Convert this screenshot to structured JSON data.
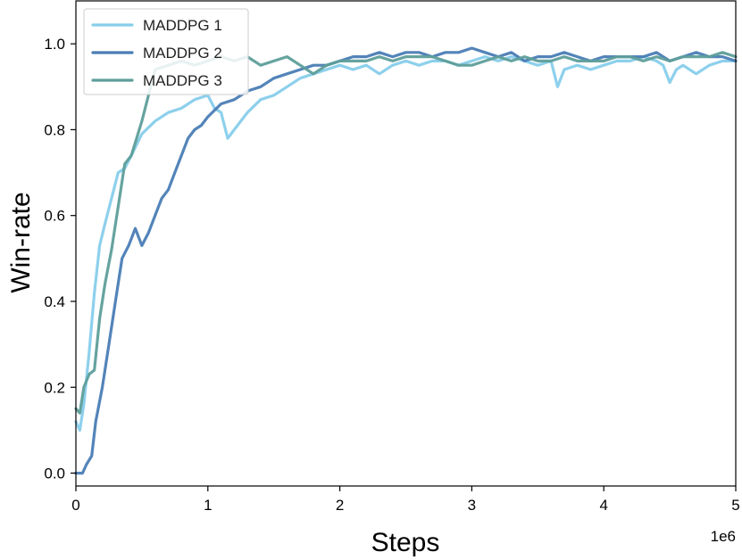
{
  "chart_data": {
    "type": "line",
    "title": "",
    "xlabel": "Steps",
    "ylabel": "Win-rate",
    "x_multiplier_label": "1e6",
    "xlim": [
      0,
      5
    ],
    "ylim": [
      -0.03,
      1.1
    ],
    "x_ticks": [
      0,
      1,
      2,
      3,
      4,
      5
    ],
    "y_ticks": [
      0.0,
      0.2,
      0.4,
      0.6,
      0.8,
      1.0
    ],
    "x_tick_labels": [
      "0",
      "1",
      "2",
      "3",
      "4",
      "5"
    ],
    "y_tick_labels": [
      "0.0",
      "0.2",
      "0.4",
      "0.6",
      "0.8",
      "1.0"
    ],
    "grid": false,
    "legend_position": "top-left",
    "series": [
      {
        "name": "MADDPG 1",
        "color": "#87CEEB",
        "points": [
          [
            0,
            0.12
          ],
          [
            0.03,
            0.1
          ],
          [
            0.06,
            0.16
          ],
          [
            0.1,
            0.28
          ],
          [
            0.14,
            0.42
          ],
          [
            0.18,
            0.53
          ],
          [
            0.22,
            0.58
          ],
          [
            0.27,
            0.64
          ],
          [
            0.32,
            0.7
          ],
          [
            0.37,
            0.71
          ],
          [
            0.42,
            0.74
          ],
          [
            0.5,
            0.79
          ],
          [
            0.6,
            0.82
          ],
          [
            0.7,
            0.84
          ],
          [
            0.8,
            0.85
          ],
          [
            0.9,
            0.87
          ],
          [
            1.0,
            0.88
          ],
          [
            1.05,
            0.85
          ],
          [
            1.1,
            0.84
          ],
          [
            1.15,
            0.78
          ],
          [
            1.2,
            0.8
          ],
          [
            1.3,
            0.84
          ],
          [
            1.4,
            0.87
          ],
          [
            1.5,
            0.88
          ],
          [
            1.6,
            0.9
          ],
          [
            1.7,
            0.92
          ],
          [
            1.8,
            0.93
          ],
          [
            1.9,
            0.94
          ],
          [
            2.0,
            0.95
          ],
          [
            2.1,
            0.94
          ],
          [
            2.2,
            0.95
          ],
          [
            2.3,
            0.93
          ],
          [
            2.4,
            0.95
          ],
          [
            2.5,
            0.96
          ],
          [
            2.6,
            0.95
          ],
          [
            2.7,
            0.96
          ],
          [
            2.8,
            0.96
          ],
          [
            2.9,
            0.95
          ],
          [
            3.0,
            0.96
          ],
          [
            3.1,
            0.97
          ],
          [
            3.2,
            0.96
          ],
          [
            3.3,
            0.97
          ],
          [
            3.4,
            0.96
          ],
          [
            3.5,
            0.95
          ],
          [
            3.6,
            0.96
          ],
          [
            3.65,
            0.9
          ],
          [
            3.7,
            0.94
          ],
          [
            3.8,
            0.95
          ],
          [
            3.9,
            0.94
          ],
          [
            4.0,
            0.95
          ],
          [
            4.1,
            0.96
          ],
          [
            4.2,
            0.96
          ],
          [
            4.3,
            0.97
          ],
          [
            4.4,
            0.96
          ],
          [
            4.45,
            0.95
          ],
          [
            4.5,
            0.91
          ],
          [
            4.55,
            0.94
          ],
          [
            4.6,
            0.95
          ],
          [
            4.7,
            0.93
          ],
          [
            4.8,
            0.95
          ],
          [
            4.9,
            0.96
          ],
          [
            5.0,
            0.96
          ]
        ]
      },
      {
        "name": "MADDPG 2",
        "color": "#4A7DB5",
        "points": [
          [
            0,
            0.0
          ],
          [
            0.05,
            0.0
          ],
          [
            0.08,
            0.02
          ],
          [
            0.12,
            0.04
          ],
          [
            0.15,
            0.12
          ],
          [
            0.2,
            0.2
          ],
          [
            0.25,
            0.3
          ],
          [
            0.3,
            0.4
          ],
          [
            0.35,
            0.5
          ],
          [
            0.4,
            0.53
          ],
          [
            0.45,
            0.57
          ],
          [
            0.5,
            0.53
          ],
          [
            0.55,
            0.56
          ],
          [
            0.6,
            0.6
          ],
          [
            0.65,
            0.64
          ],
          [
            0.7,
            0.66
          ],
          [
            0.75,
            0.7
          ],
          [
            0.8,
            0.74
          ],
          [
            0.85,
            0.78
          ],
          [
            0.9,
            0.8
          ],
          [
            0.95,
            0.81
          ],
          [
            1.0,
            0.83
          ],
          [
            1.1,
            0.86
          ],
          [
            1.2,
            0.87
          ],
          [
            1.3,
            0.89
          ],
          [
            1.4,
            0.9
          ],
          [
            1.5,
            0.92
          ],
          [
            1.6,
            0.93
          ],
          [
            1.7,
            0.94
          ],
          [
            1.8,
            0.95
          ],
          [
            1.9,
            0.95
          ],
          [
            2.0,
            0.96
          ],
          [
            2.1,
            0.97
          ],
          [
            2.2,
            0.97
          ],
          [
            2.3,
            0.98
          ],
          [
            2.4,
            0.97
          ],
          [
            2.5,
            0.98
          ],
          [
            2.6,
            0.98
          ],
          [
            2.7,
            0.97
          ],
          [
            2.8,
            0.98
          ],
          [
            2.9,
            0.98
          ],
          [
            3.0,
            0.99
          ],
          [
            3.1,
            0.98
          ],
          [
            3.2,
            0.97
          ],
          [
            3.3,
            0.98
          ],
          [
            3.4,
            0.96
          ],
          [
            3.5,
            0.97
          ],
          [
            3.6,
            0.97
          ],
          [
            3.7,
            0.98
          ],
          [
            3.8,
            0.97
          ],
          [
            3.9,
            0.96
          ],
          [
            4.0,
            0.97
          ],
          [
            4.1,
            0.97
          ],
          [
            4.2,
            0.97
          ],
          [
            4.3,
            0.97
          ],
          [
            4.4,
            0.98
          ],
          [
            4.5,
            0.96
          ],
          [
            4.6,
            0.97
          ],
          [
            4.7,
            0.98
          ],
          [
            4.8,
            0.97
          ],
          [
            4.9,
            0.97
          ],
          [
            5.0,
            0.96
          ]
        ]
      },
      {
        "name": "MADDPG 3",
        "color": "#5E9E9A",
        "points": [
          [
            0,
            0.15
          ],
          [
            0.03,
            0.14
          ],
          [
            0.06,
            0.2
          ],
          [
            0.1,
            0.23
          ],
          [
            0.14,
            0.24
          ],
          [
            0.18,
            0.36
          ],
          [
            0.22,
            0.44
          ],
          [
            0.27,
            0.52
          ],
          [
            0.32,
            0.62
          ],
          [
            0.37,
            0.72
          ],
          [
            0.42,
            0.74
          ],
          [
            0.5,
            0.82
          ],
          [
            0.55,
            0.88
          ],
          [
            0.6,
            0.94
          ],
          [
            0.7,
            0.95
          ],
          [
            0.8,
            0.96
          ],
          [
            0.9,
            0.95
          ],
          [
            1.0,
            0.96
          ],
          [
            1.1,
            0.97
          ],
          [
            1.2,
            0.96
          ],
          [
            1.3,
            0.97
          ],
          [
            1.4,
            0.95
          ],
          [
            1.5,
            0.96
          ],
          [
            1.6,
            0.97
          ],
          [
            1.7,
            0.95
          ],
          [
            1.8,
            0.93
          ],
          [
            1.9,
            0.95
          ],
          [
            2.0,
            0.96
          ],
          [
            2.1,
            0.96
          ],
          [
            2.2,
            0.96
          ],
          [
            2.3,
            0.97
          ],
          [
            2.4,
            0.96
          ],
          [
            2.5,
            0.97
          ],
          [
            2.6,
            0.97
          ],
          [
            2.7,
            0.97
          ],
          [
            2.8,
            0.96
          ],
          [
            2.9,
            0.95
          ],
          [
            3.0,
            0.95
          ],
          [
            3.1,
            0.96
          ],
          [
            3.2,
            0.97
          ],
          [
            3.3,
            0.96
          ],
          [
            3.4,
            0.97
          ],
          [
            3.5,
            0.96
          ],
          [
            3.6,
            0.96
          ],
          [
            3.7,
            0.97
          ],
          [
            3.8,
            0.96
          ],
          [
            3.9,
            0.96
          ],
          [
            4.0,
            0.96
          ],
          [
            4.1,
            0.97
          ],
          [
            4.2,
            0.97
          ],
          [
            4.3,
            0.96
          ],
          [
            4.4,
            0.97
          ],
          [
            4.5,
            0.96
          ],
          [
            4.6,
            0.97
          ],
          [
            4.7,
            0.97
          ],
          [
            4.8,
            0.97
          ],
          [
            4.9,
            0.98
          ],
          [
            5.0,
            0.97
          ]
        ]
      }
    ]
  }
}
